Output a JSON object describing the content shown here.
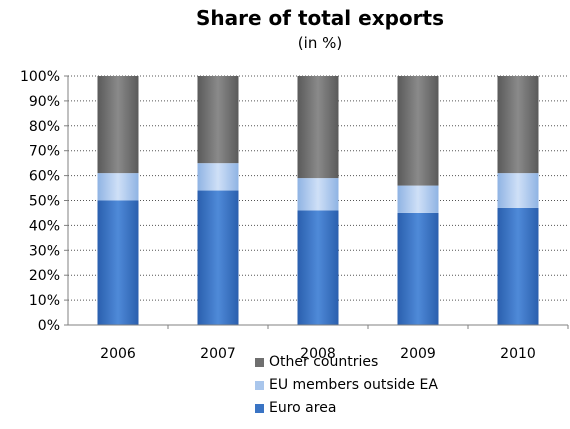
{
  "chart_data": {
    "type": "bar",
    "stacked": true,
    "title": "Share of total exports",
    "subtitle": "(in %)",
    "categories": [
      "2006",
      "2007",
      "2008",
      "2009",
      "2010"
    ],
    "series": [
      {
        "name": "Euro area",
        "values": [
          50,
          54,
          46,
          45,
          47
        ],
        "color": "#3a74c4"
      },
      {
        "name": "EU members outside EA",
        "values": [
          11,
          11,
          13,
          11,
          14
        ],
        "color": "#a9c6ec"
      },
      {
        "name": "Other countries",
        "values": [
          39,
          35,
          41,
          44,
          39
        ],
        "color": "#6f6f6f"
      }
    ],
    "y_ticks": [
      "0%",
      "10%",
      "20%",
      "30%",
      "40%",
      "50%",
      "60%",
      "70%",
      "80%",
      "90%",
      "100%"
    ],
    "ylim": [
      0,
      100
    ],
    "grid": true,
    "legend_position": "bottom"
  },
  "legend": [
    {
      "label": "Other countries",
      "color": "#6f6f6f"
    },
    {
      "label": "EU members outside EA",
      "color": "#a9c6ec"
    },
    {
      "label": "Euro area",
      "color": "#3a74c4"
    }
  ]
}
